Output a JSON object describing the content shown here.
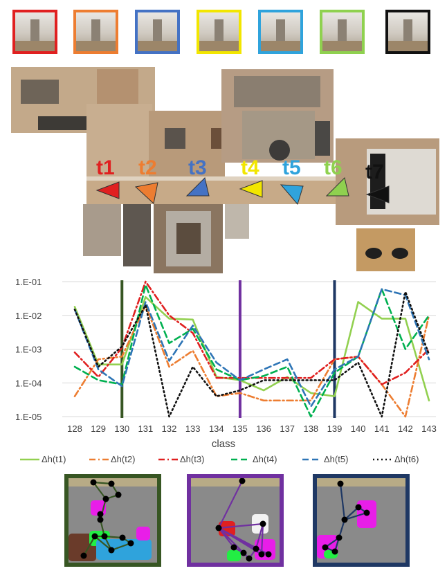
{
  "thumbnails": [
    {
      "id": "t1",
      "border": "#e02020"
    },
    {
      "id": "t2",
      "border": "#ed7d31"
    },
    {
      "id": "t3",
      "border": "#4472c4"
    },
    {
      "id": "t4",
      "border": "#f2e600"
    },
    {
      "id": "t5",
      "border": "#2fa3dc"
    },
    {
      "id": "t6",
      "border": "#8fd14f"
    },
    {
      "id": "t7",
      "border": "#111111"
    }
  ],
  "trajectory": [
    {
      "label": "t1",
      "color": "#e02020",
      "direction": "left"
    },
    {
      "label": "t2",
      "color": "#ed7d31",
      "direction": "down-left"
    },
    {
      "label": "t3",
      "color": "#4472c4",
      "direction": "up-right"
    },
    {
      "label": "t4",
      "color": "#f2e600",
      "direction": "left"
    },
    {
      "label": "t5",
      "color": "#2fa3dc",
      "direction": "down-right"
    },
    {
      "label": "t6",
      "color": "#8fd14f",
      "direction": "up-right"
    },
    {
      "label": "t7",
      "color": "#111111",
      "direction": "left"
    }
  ],
  "chart_data": {
    "type": "line",
    "xlabel": "class",
    "ylabel": "",
    "yscale": "log",
    "ylim": [
      1e-05,
      0.1
    ],
    "y_ticks": [
      "1.E-01",
      "1.E-02",
      "1.E-03",
      "1.E-04",
      "1.E-05"
    ],
    "y_tick_values": [
      0.1,
      0.01,
      0.001,
      0.0001,
      1e-05
    ],
    "categories": [
      "128",
      "129",
      "130",
      "131",
      "132",
      "133",
      "134",
      "135",
      "136",
      "137",
      "138",
      "139",
      "140",
      "141",
      "142",
      "143"
    ],
    "vertical_markers": [
      {
        "class": "130",
        "color": "#375623"
      },
      {
        "class": "135",
        "color": "#7030a0"
      },
      {
        "class": "139",
        "color": "#1f3864"
      }
    ],
    "series": [
      {
        "name": "Δh(t1)",
        "color": "#92d050",
        "dash": "solid",
        "values": [
          0.018,
          0.00035,
          0.00035,
          0.035,
          0.008,
          0.0075,
          0.00015,
          0.00012,
          6e-05,
          0.00015,
          5e-05,
          4e-05,
          0.025,
          0.008,
          0.008,
          3e-05
        ]
      },
      {
        "name": "Δh(t2)",
        "color": "#ed7d31",
        "dash": "dashdot",
        "values": [
          4e-05,
          0.0005,
          0.0006,
          0.02,
          0.0003,
          0.0009,
          4e-05,
          5e-05,
          3e-05,
          3e-05,
          3e-05,
          0.0005,
          0.0006,
          9e-05,
          8e-06,
          0.01
        ]
      },
      {
        "name": "Δh(t3)",
        "color": "#e02020",
        "dash": "dashdot",
        "values": [
          0.0008,
          0.00015,
          0.0011,
          0.1,
          0.01,
          0.003,
          0.00014,
          0.00014,
          0.00014,
          0.00014,
          0.00014,
          0.0005,
          0.0006,
          9e-05,
          0.0002,
          0.001
        ]
      },
      {
        "name": "Δh(t4)",
        "color": "#00b050",
        "dash": "dash",
        "values": [
          0.0003,
          0.00012,
          9e-05,
          0.08,
          0.0015,
          0.004,
          0.00025,
          0.00012,
          0.00016,
          0.0003,
          1e-05,
          0.0002,
          0.0006,
          0.06,
          0.001,
          0.01
        ]
      },
      {
        "name": "Δh(t5)",
        "color": "#2e75b6",
        "dash": "dash",
        "values": [
          0.015,
          0.00025,
          8e-05,
          0.025,
          0.00045,
          0.005,
          0.0004,
          0.00012,
          0.00025,
          0.0005,
          2e-05,
          0.00025,
          0.0006,
          0.06,
          0.04,
          0.0005
        ]
      },
      {
        "name": "Δh(t6)",
        "color": "#111111",
        "dash": "dot",
        "values": [
          0.015,
          0.0003,
          0.0012,
          0.02,
          1e-05,
          0.0003,
          4e-05,
          6e-05,
          0.00012,
          0.00012,
          0.00012,
          0.00012,
          0.0004,
          1e-05,
          0.05,
          0.0007
        ]
      }
    ]
  },
  "graphs": [
    {
      "border": "#375623"
    },
    {
      "border": "#7030a0"
    },
    {
      "border": "#1f3864"
    }
  ]
}
